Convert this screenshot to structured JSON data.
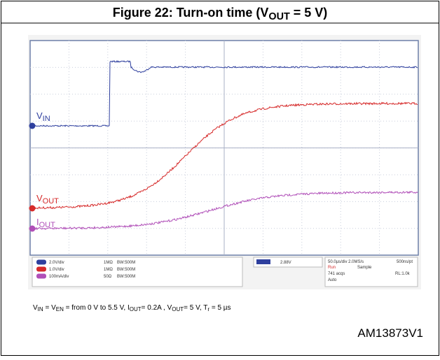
{
  "figure": {
    "title": [
      {
        "text": "Figure 22: Turn-on time (V",
        "sub": false
      },
      {
        "text": "OUT",
        "sub": true
      },
      {
        "text": " = 5 V)",
        "sub": false
      }
    ],
    "traces": [
      {
        "main": "V",
        "sub": "IN",
        "color": "#2e3f9e"
      },
      {
        "main": "V",
        "sub": "OUT",
        "color": "#d62a2a"
      },
      {
        "main": "I",
        "sub": "OUT",
        "color": "#b04fb8"
      }
    ],
    "channels": [
      {
        "scale": "2.0V/div",
        "impedance": "1MΩ",
        "bandwidth": "BW:500M"
      },
      {
        "scale": "1.0V/div",
        "impedance": "1MΩ",
        "bandwidth": "BW:500M"
      },
      {
        "scale": "100mA/div",
        "impedance": "50Ω",
        "bandwidth": "BW:500M"
      }
    ],
    "trigger": "2.88V",
    "timebase": {
      "rate": "50.0µs/div 2.0MS/s",
      "resolution": "500ns/pt",
      "state": "Run",
      "mode": "Sample",
      "acquisitions": "741 acqs",
      "record_length": "RL:1.0k",
      "trigger_mode": "Auto"
    },
    "caption": [
      {
        "text": "V",
        "sub": false
      },
      {
        "text": "IN",
        "sub": true
      },
      {
        "text": " = V",
        "sub": false
      },
      {
        "text": "EN",
        "sub": true
      },
      {
        "text": " = from 0 V to 5.5 V, I",
        "sub": false
      },
      {
        "text": "OUT",
        "sub": true
      },
      {
        "text": "= 0.2A , V",
        "sub": false
      },
      {
        "text": "OUT",
        "sub": true
      },
      {
        "text": "= 5 V, T",
        "sub": false
      },
      {
        "text": "r",
        "sub": true
      },
      {
        "text": " = 5 µs",
        "sub": false
      }
    ],
    "id": "AM13873V1"
  }
}
